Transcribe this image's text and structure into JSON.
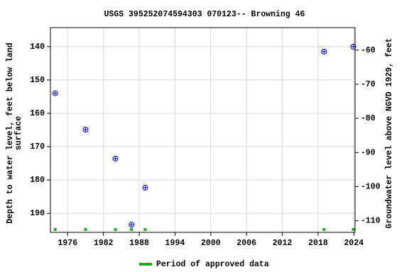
{
  "chart_data": {
    "type": "scatter",
    "title": "USGS 395252074594303 070123-- Browning 46",
    "y_label": [
      "Depth to water level, feet below land",
      "surface"
    ],
    "y2_label": "Groundwater level above NGVD 1929, feet",
    "xlim": [
      1973.1,
      2024.2
    ],
    "xticks": [
      1976,
      1982,
      1988,
      1994,
      2000,
      2006,
      2012,
      2018,
      2024
    ],
    "ylim": [
      134.3,
      195.7
    ],
    "yticks": [
      140,
      150,
      160,
      170,
      180,
      190
    ],
    "y2lim": [
      -53.4,
      -113.4
    ],
    "y2ticks": [
      -60,
      -70,
      -80,
      -90,
      -100,
      -110
    ],
    "grid": true,
    "points": {
      "color": "#0000cc",
      "x": [
        1973.9,
        1979.0,
        1984.0,
        1986.7,
        1989.0,
        2019.0,
        2023.9
      ],
      "values": [
        154.0,
        164.9,
        173.6,
        193.4,
        182.3,
        141.5,
        140.0
      ]
    },
    "approved": {
      "name": "Period of approved data",
      "color": "#22aa22",
      "x": [
        1973.9,
        1979.0,
        1984.0,
        1986.7,
        1989.0,
        2019.0,
        2023.9
      ]
    }
  }
}
